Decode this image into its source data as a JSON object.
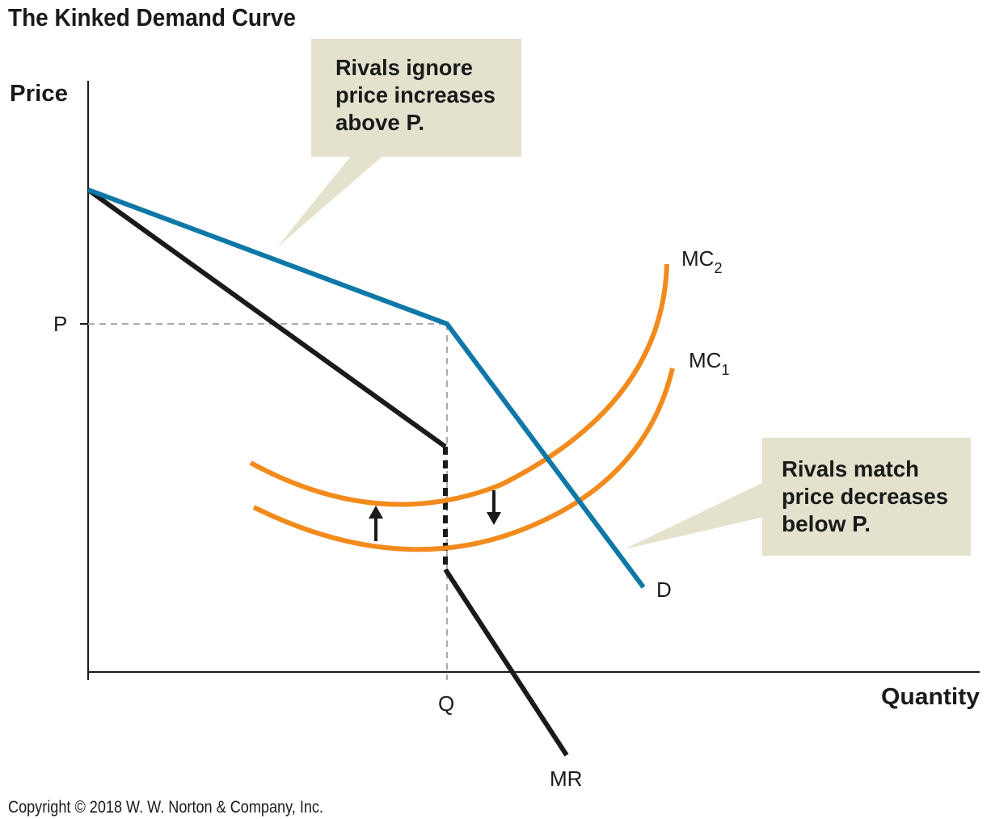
{
  "title": "The Kinked Demand Curve",
  "axes": {
    "y_label": "Price",
    "x_label": "Quantity",
    "p_label": "P",
    "q_label": "Q"
  },
  "curves": {
    "demand_label": "D",
    "mr_label": "MR",
    "mc1_base": "MC",
    "mc1_sub": "1",
    "mc2_base": "MC",
    "mc2_sub": "2"
  },
  "callouts": {
    "top": {
      "lines": [
        "Rivals ignore",
        "price increases",
        "above P."
      ]
    },
    "bottom": {
      "lines": [
        "Rivals match",
        "price decreases",
        "below P."
      ]
    }
  },
  "copyright": "Copyright © 2018 W. W. Norton & Company, Inc.",
  "colors": {
    "demand": "#0f78a6",
    "mr": "#1a1a1a",
    "mc": "#f28a1c",
    "callout_bg": "#e4e1cd",
    "guide": "#aaaaaa"
  }
}
